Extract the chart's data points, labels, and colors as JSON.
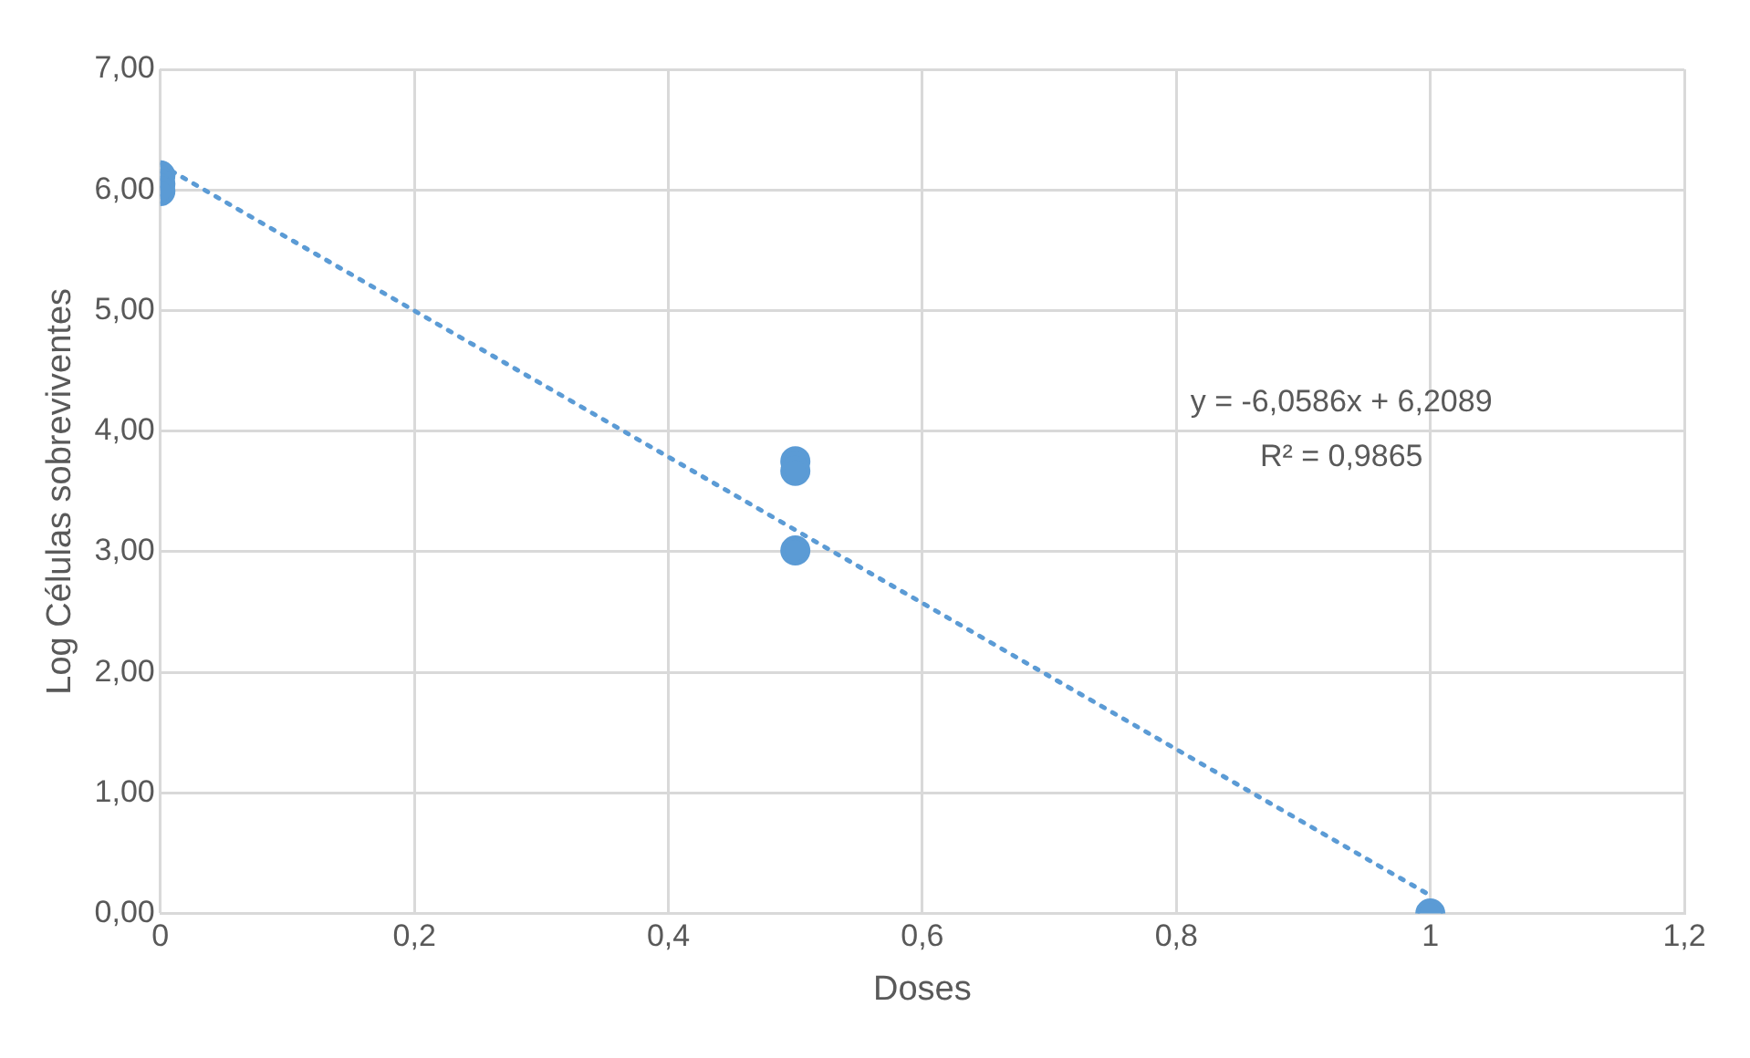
{
  "chart_data": {
    "type": "scatter",
    "xlabel": "Doses",
    "ylabel": "Log Células sobreviventes",
    "xlim": [
      0,
      1.2
    ],
    "xticks": [
      {
        "value": 0,
        "label": "0"
      },
      {
        "value": 0.2,
        "label": "0,2"
      },
      {
        "value": 0.4,
        "label": "0,4"
      },
      {
        "value": 0.6,
        "label": "0,6"
      },
      {
        "value": 0.8,
        "label": "0,8"
      },
      {
        "value": 1,
        "label": "1"
      },
      {
        "value": 1.2,
        "label": "1,2"
      }
    ],
    "ylim": [
      0,
      7
    ],
    "yticks": [
      {
        "value": 0,
        "label": "0,00"
      },
      {
        "value": 1,
        "label": "1,00"
      },
      {
        "value": 2,
        "label": "2,00"
      },
      {
        "value": 3,
        "label": "3,00"
      },
      {
        "value": 4,
        "label": "4,00"
      },
      {
        "value": 5,
        "label": "5,00"
      },
      {
        "value": 6,
        "label": "6,00"
      },
      {
        "value": 7,
        "label": "7,00"
      }
    ],
    "grid": true,
    "marker": "circle",
    "series": [
      {
        "type": "scatter",
        "color": "#5b9bd5",
        "x": [
          0,
          0,
          0,
          0.5,
          0.5,
          0.5,
          1
        ],
        "values": [
          6.12,
          6.05,
          5.99,
          3.75,
          3.67,
          3.01,
          0
        ]
      },
      {
        "type": "line",
        "color": "#5b9bd5",
        "line_style": "dotted",
        "marker": "none",
        "x": [
          0,
          1
        ],
        "values": [
          6.21,
          0.15
        ]
      }
    ],
    "annotations": [
      "y = -6,0586x + 6,2089",
      "R² = 0,9865"
    ]
  }
}
